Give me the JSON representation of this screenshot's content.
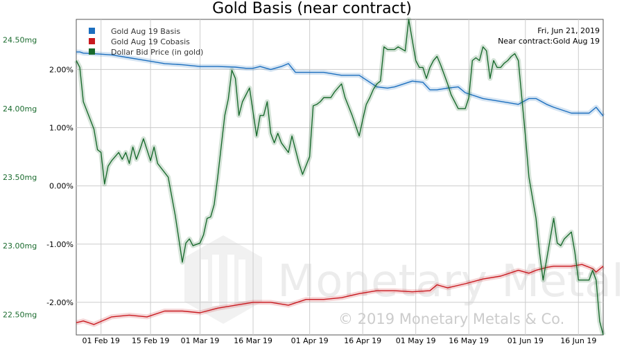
{
  "chart_data": {
    "type": "line",
    "title": "Gold Basis (near contract)",
    "annotation": {
      "date": "Fri, Jun 21, 2019",
      "contract": "Near contract:Gold Aug 19"
    },
    "watermark": {
      "logo_text": "Monetary Metals",
      "copyright": "© 2019 Monetary Metals & Co."
    },
    "legend_position": "top-left",
    "grid": true,
    "x_ticks": [
      "01 Feb 19",
      "15 Feb 19",
      "01 Mar 19",
      "16 Mar 19",
      "01 Apr 19",
      "16 Apr 19",
      "01 May 19",
      "16 May 19",
      "01 Jun 19",
      "16 Jun 19"
    ],
    "x_tick_day": [
      7,
      21,
      35,
      50,
      66,
      81,
      96,
      111,
      127,
      142
    ],
    "x_range": [
      0,
      149
    ],
    "left_axis": {
      "ticks": [
        "22.50mg",
        "23.00mg",
        "23.50mg",
        "24.00mg",
        "24.50mg"
      ],
      "tick_values": [
        22.5,
        23.0,
        23.5,
        24.0,
        24.5
      ],
      "range": [
        22.35,
        24.65
      ],
      "color": "#1a6b2e"
    },
    "right_axis": {
      "ticks": [
        "-2.00%",
        "-1.00%",
        "0.00%",
        "1.00%",
        "2.00%"
      ],
      "tick_values": [
        -2.0,
        -1.0,
        0.0,
        1.0,
        2.0
      ],
      "range": [
        -2.56,
        2.86
      ],
      "color": "#000000"
    },
    "series": [
      {
        "name": "Gold Aug 19 Basis",
        "axis": "right",
        "color": "#1c6fbf",
        "x": [
          0,
          1,
          2,
          5,
          10,
          15,
          20,
          25,
          30,
          35,
          40,
          45,
          48,
          50,
          52,
          55,
          58,
          60,
          62,
          65,
          70,
          75,
          80,
          85,
          88,
          90,
          95,
          98,
          100,
          102,
          105,
          108,
          110,
          115,
          120,
          125,
          128,
          130,
          133,
          135,
          140,
          143,
          145,
          147,
          149
        ],
        "y": [
          2.3,
          2.3,
          2.28,
          2.27,
          2.25,
          2.2,
          2.15,
          2.1,
          2.08,
          2.05,
          2.05,
          2.04,
          2.02,
          2.02,
          2.05,
          2.0,
          2.05,
          2.1,
          1.95,
          1.95,
          1.95,
          1.9,
          1.9,
          1.7,
          1.68,
          1.7,
          1.8,
          1.78,
          1.65,
          1.65,
          1.68,
          1.7,
          1.6,
          1.5,
          1.45,
          1.4,
          1.5,
          1.5,
          1.4,
          1.35,
          1.25,
          1.25,
          1.25,
          1.35,
          1.2
        ]
      },
      {
        "name": "Gold Aug 19 Cobasis",
        "axis": "right",
        "color": "#c9191f",
        "x": [
          0,
          2,
          5,
          10,
          15,
          20,
          25,
          30,
          35,
          40,
          45,
          50,
          55,
          60,
          65,
          70,
          75,
          80,
          85,
          88,
          90,
          95,
          100,
          102,
          105,
          110,
          115,
          120,
          125,
          128,
          130,
          133,
          135,
          140,
          143,
          146,
          147,
          149
        ],
        "y": [
          -2.35,
          -2.32,
          -2.38,
          -2.25,
          -2.22,
          -2.25,
          -2.15,
          -2.15,
          -2.18,
          -2.1,
          -2.05,
          -2.0,
          -2.0,
          -2.05,
          -1.95,
          -1.95,
          -1.92,
          -1.85,
          -1.8,
          -1.8,
          -1.8,
          -1.82,
          -1.8,
          -1.7,
          -1.75,
          -1.68,
          -1.6,
          -1.55,
          -1.45,
          -1.5,
          -1.45,
          -1.4,
          -1.38,
          -1.38,
          -1.35,
          -1.42,
          -1.48,
          -1.38
        ]
      },
      {
        "name": "Dollar Bid Price (in gold)",
        "axis": "left",
        "color": "#1a6b2e",
        "x": [
          0,
          1,
          2,
          5,
          6,
          7,
          8,
          9,
          10,
          12,
          13,
          14,
          15,
          16,
          17,
          18,
          19,
          20,
          21,
          22,
          23,
          26,
          28,
          30,
          31,
          32,
          33,
          35,
          36,
          37,
          38,
          39,
          40,
          42,
          43,
          44,
          45,
          46,
          47,
          48,
          49,
          51,
          52,
          53,
          54,
          55,
          56,
          57,
          58,
          60,
          61,
          62,
          63,
          64,
          66,
          67,
          68,
          69,
          70,
          72,
          73,
          74,
          75,
          76,
          78,
          80,
          81,
          82,
          83,
          84,
          85,
          86,
          87,
          88,
          89,
          90,
          91,
          93,
          94,
          96,
          97,
          98,
          99,
          100,
          101,
          102,
          103,
          104,
          105,
          106,
          108,
          110,
          111,
          112,
          113,
          114,
          115,
          116,
          117,
          118,
          119,
          120,
          121,
          122,
          123,
          124,
          125,
          127,
          128,
          130,
          131,
          132,
          133,
          135,
          136,
          137,
          138,
          140,
          141,
          142,
          144,
          145,
          146,
          147,
          148,
          149
        ],
        "y": [
          24.35,
          24.3,
          24.05,
          23.85,
          23.7,
          23.68,
          23.45,
          23.58,
          23.62,
          23.68,
          23.63,
          23.68,
          23.6,
          23.72,
          23.63,
          23.7,
          23.78,
          23.7,
          23.62,
          23.72,
          23.6,
          23.5,
          23.22,
          22.88,
          23.02,
          23.05,
          23.0,
          23.02,
          23.08,
          23.2,
          23.21,
          23.3,
          23.5,
          23.95,
          24.07,
          24.28,
          24.22,
          23.95,
          24.05,
          24.1,
          24.15,
          23.8,
          23.95,
          23.95,
          24.05,
          23.82,
          23.75,
          23.82,
          23.75,
          23.68,
          23.8,
          23.7,
          23.6,
          23.52,
          23.65,
          24.02,
          24.03,
          24.05,
          24.08,
          24.08,
          24.12,
          24.15,
          24.18,
          24.08,
          23.95,
          23.8,
          23.92,
          24.03,
          24.08,
          24.14,
          24.18,
          24.2,
          24.45,
          24.43,
          24.43,
          24.43,
          24.45,
          24.42,
          24.65,
          24.35,
          24.3,
          24.3,
          24.22,
          24.3,
          24.35,
          24.38,
          24.32,
          24.25,
          24.18,
          24.1,
          24.0,
          24.0,
          24.08,
          24.35,
          24.37,
          24.35,
          24.45,
          24.42,
          24.22,
          24.35,
          24.3,
          24.3,
          24.33,
          24.35,
          24.38,
          24.4,
          24.35,
          23.8,
          23.5,
          23.2,
          22.95,
          22.75,
          22.9,
          23.2,
          23.02,
          23.0,
          23.05,
          23.1,
          22.95,
          22.75,
          22.75,
          22.75,
          22.82,
          22.75,
          22.45,
          22.35
        ]
      }
    ]
  }
}
